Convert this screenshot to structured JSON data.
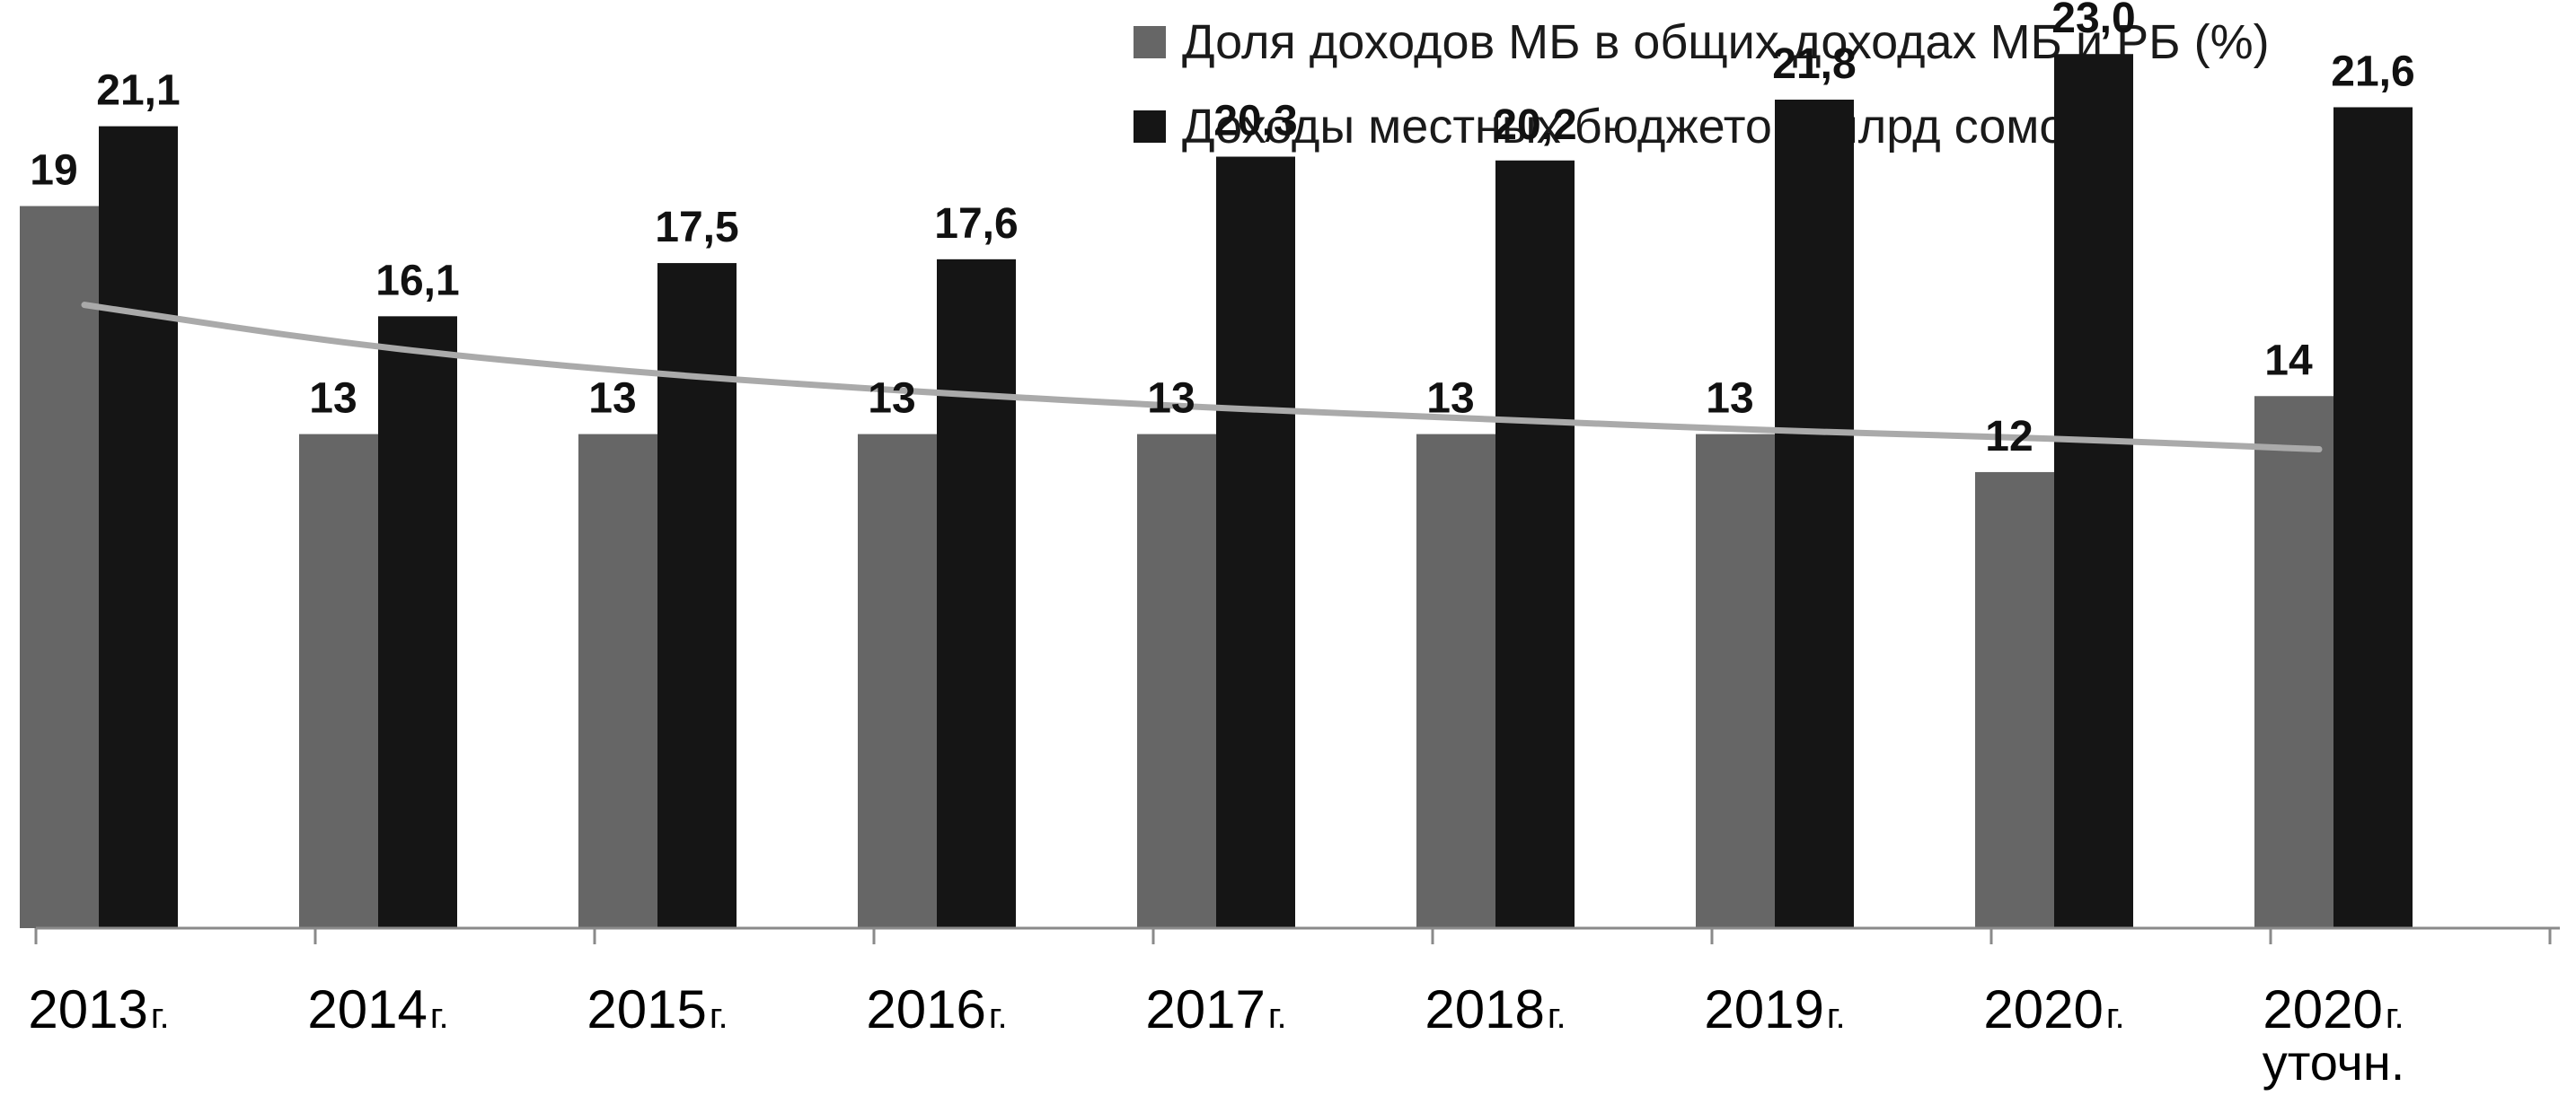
{
  "chart_data": {
    "type": "bar",
    "categories": [
      {
        "year": "2013",
        "suffix": "г.",
        "sub": ""
      },
      {
        "year": "2014",
        "suffix": "г.",
        "sub": ""
      },
      {
        "year": "2015",
        "suffix": "г.",
        "sub": ""
      },
      {
        "year": "2016",
        "suffix": "г.",
        "sub": ""
      },
      {
        "year": "2017",
        "suffix": "г.",
        "sub": ""
      },
      {
        "year": "2018",
        "suffix": "г.",
        "sub": ""
      },
      {
        "year": "2019",
        "suffix": "г.",
        "sub": ""
      },
      {
        "year": "2020",
        "suffix": "г.",
        "sub": ""
      },
      {
        "year": "2020",
        "suffix": "г.",
        "sub": "уточн."
      }
    ],
    "series": [
      {
        "name": "Доля доходов МБ в общих доходах МБ и РБ (%)",
        "color": "#666666",
        "values": [
          19,
          13,
          13,
          13,
          13,
          13,
          13,
          12,
          14
        ],
        "labels": [
          "19",
          "13",
          "13",
          "13",
          "13",
          "13",
          "13",
          "12",
          "14"
        ]
      },
      {
        "name": "Доходы местных бюджетов, млрд сомов",
        "color": "#151515",
        "values": [
          21.1,
          16.1,
          17.5,
          17.6,
          20.3,
          20.2,
          21.8,
          23.0,
          21.6
        ],
        "labels": [
          "21,1",
          "16,1",
          "17,5",
          "17,6",
          "20,3",
          "20,2",
          "21,8",
          "23,0",
          "21,6"
        ]
      }
    ],
    "trendline": {
      "type": "logarithmic",
      "color": "#aaaaaa",
      "values": [
        16.4,
        15.3,
        14.6,
        14.1,
        13.7,
        13.4,
        13.1,
        12.9,
        12.6
      ]
    },
    "ylim": [
      0,
      24.8
    ],
    "legend_position": "top-right",
    "grid": false
  }
}
